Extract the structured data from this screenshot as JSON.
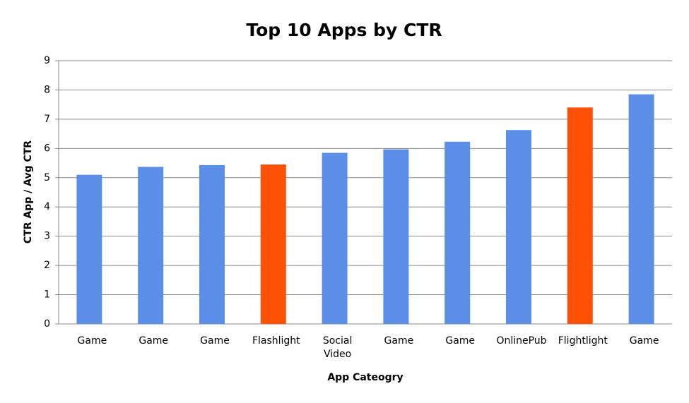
{
  "chart_data": {
    "type": "bar",
    "title": "Top 10 Apps by CTR",
    "x_label": "App Cateogry",
    "y_label": "CTR App / Avg CTR",
    "categories": [
      "Game",
      "Game",
      "Game",
      "Flashlight",
      "Social Video",
      "Game",
      "Game",
      "OnlinePub",
      "Flightlight",
      "Game"
    ],
    "values": [
      5.1,
      5.37,
      5.43,
      5.45,
      5.85,
      5.97,
      6.23,
      6.63,
      7.4,
      7.85
    ],
    "colors": [
      "#5b8ee6",
      "#5b8ee6",
      "#5b8ee6",
      "#ff5008",
      "#5b8ee6",
      "#5b8ee6",
      "#5b8ee6",
      "#5b8ee6",
      "#ff5008",
      "#5b8ee6"
    ],
    "ylim": [
      0,
      9
    ],
    "yticks": [
      0,
      1,
      2,
      3,
      4,
      5,
      6,
      7,
      8,
      9
    ],
    "grid": true
  }
}
